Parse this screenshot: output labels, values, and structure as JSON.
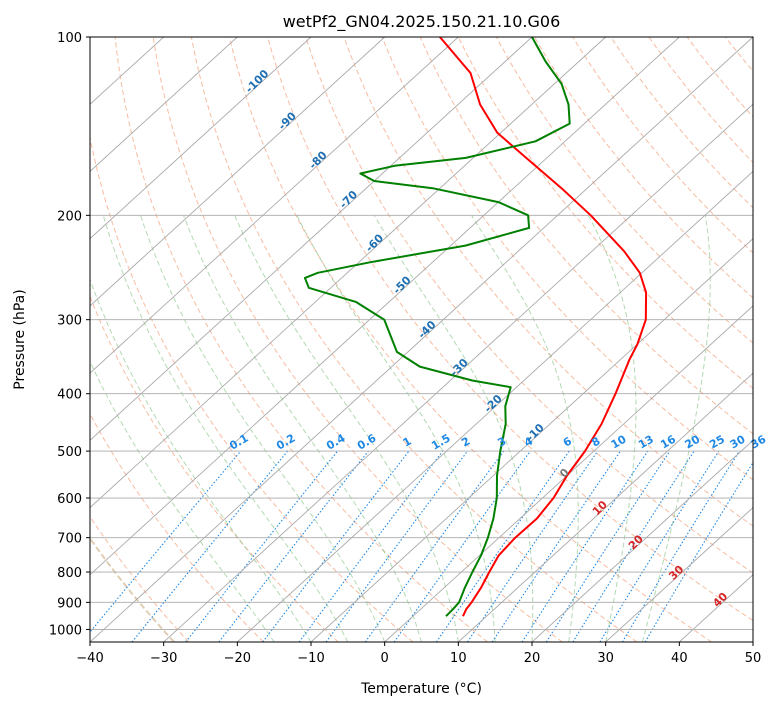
{
  "chart_data": {
    "type": "skew-t",
    "title": "wetPf2_GN04.2025.150.21.10.G06",
    "xlabel": "Temperature (°C)",
    "ylabel": "Pressure (hPa)",
    "xlim": [
      -40,
      50
    ],
    "ylim": [
      1050,
      100
    ],
    "yscale": "log",
    "grid": true,
    "x_ticks": [
      "−40",
      "−30",
      "−20",
      "−10",
      "0",
      "10",
      "20",
      "30",
      "40",
      "50"
    ],
    "y_ticks": [
      "100",
      "200",
      "300",
      "400",
      "500",
      "600",
      "700",
      "800",
      "900",
      "1000"
    ],
    "isotherm_labels": [
      {
        "t": -100,
        "p": 120,
        "text": "-100"
      },
      {
        "t": -90,
        "p": 140,
        "text": "-90"
      },
      {
        "t": -80,
        "p": 163,
        "text": "-80"
      },
      {
        "t": -70,
        "p": 190,
        "text": "-70"
      },
      {
        "t": -60,
        "p": 225,
        "text": "-60"
      },
      {
        "t": -50,
        "p": 265,
        "text": "-50"
      },
      {
        "t": -40,
        "p": 315,
        "text": "-40"
      },
      {
        "t": -30,
        "p": 365,
        "text": "-30"
      },
      {
        "t": -20,
        "p": 420,
        "text": "-20"
      },
      {
        "t": -10,
        "p": 470,
        "text": "-10"
      },
      {
        "t": 0,
        "p": 550,
        "text": "0"
      },
      {
        "t": 10,
        "p": 630,
        "text": "10"
      },
      {
        "t": 20,
        "p": 720,
        "text": "20"
      },
      {
        "t": 30,
        "p": 810,
        "text": "30"
      },
      {
        "t": 40,
        "p": 900,
        "text": "40"
      }
    ],
    "mixing_ratio_labels": [
      "0.1",
      "0.2",
      "0.4",
      "0.6",
      "1",
      "1.5",
      "2",
      "3",
      "4",
      "6",
      "8",
      "10",
      "13",
      "16",
      "20",
      "25",
      "30",
      "36"
    ],
    "series": [
      {
        "color": "#ff0000",
        "points": [
          {
            "p": 950,
            "t": 6.8
          },
          {
            "p": 925,
            "t": 6.2
          },
          {
            "p": 900,
            "t": 5.9
          },
          {
            "p": 850,
            "t": 5.0
          },
          {
            "p": 800,
            "t": 3.8
          },
          {
            "p": 750,
            "t": 2.6
          },
          {
            "p": 700,
            "t": 2.2
          },
          {
            "p": 650,
            "t": 2.3
          },
          {
            "p": 600,
            "t": 1.5
          },
          {
            "p": 550,
            "t": 0.0
          },
          {
            "p": 500,
            "t": -1.2
          },
          {
            "p": 450,
            "t": -3.0
          },
          {
            "p": 400,
            "t": -5.6
          },
          {
            "p": 350,
            "t": -8.8
          },
          {
            "p": 330,
            "t": -10.0
          },
          {
            "p": 300,
            "t": -12.5
          },
          {
            "p": 270,
            "t": -16.5
          },
          {
            "p": 250,
            "t": -20.3
          },
          {
            "p": 230,
            "t": -25.6
          },
          {
            "p": 200,
            "t": -35.5
          },
          {
            "p": 180,
            "t": -43.5
          },
          {
            "p": 160,
            "t": -52.8
          },
          {
            "p": 145,
            "t": -60.5
          },
          {
            "p": 130,
            "t": -67.0
          },
          {
            "p": 115,
            "t": -73.0
          },
          {
            "p": 100,
            "t": -82.5
          }
        ]
      },
      {
        "color": "#008000",
        "points": [
          {
            "p": 950,
            "t": 4.5
          },
          {
            "p": 925,
            "t": 4.4
          },
          {
            "p": 900,
            "t": 4.2
          },
          {
            "p": 850,
            "t": 2.8
          },
          {
            "p": 800,
            "t": 1.5
          },
          {
            "p": 750,
            "t": 0.2
          },
          {
            "p": 700,
            "t": -1.5
          },
          {
            "p": 650,
            "t": -3.6
          },
          {
            "p": 600,
            "t": -6.2
          },
          {
            "p": 550,
            "t": -9.5
          },
          {
            "p": 500,
            "t": -12.7
          },
          {
            "p": 450,
            "t": -16.0
          },
          {
            "p": 420,
            "t": -18.7
          },
          {
            "p": 390,
            "t": -20.8
          },
          {
            "p": 380,
            "t": -27.0
          },
          {
            "p": 360,
            "t": -36.2
          },
          {
            "p": 340,
            "t": -41.5
          },
          {
            "p": 300,
            "t": -48.0
          },
          {
            "p": 280,
            "t": -54.5
          },
          {
            "p": 265,
            "t": -63.0
          },
          {
            "p": 255,
            "t": -65.0
          },
          {
            "p": 250,
            "t": -64.0
          },
          {
            "p": 240,
            "t": -58.5
          },
          {
            "p": 225,
            "t": -48.0
          },
          {
            "p": 210,
            "t": -42.0
          },
          {
            "p": 200,
            "t": -44.0
          },
          {
            "p": 190,
            "t": -50.0
          },
          {
            "p": 180,
            "t": -61.0
          },
          {
            "p": 175,
            "t": -70.0
          },
          {
            "p": 170,
            "t": -73.0
          },
          {
            "p": 165,
            "t": -69.5
          },
          {
            "p": 160,
            "t": -61.0
          },
          {
            "p": 150,
            "t": -54.0
          },
          {
            "p": 140,
            "t": -52.0
          },
          {
            "p": 130,
            "t": -55.0
          },
          {
            "p": 120,
            "t": -59.0
          },
          {
            "p": 110,
            "t": -64.5
          },
          {
            "p": 100,
            "t": -70.0
          }
        ]
      }
    ]
  }
}
